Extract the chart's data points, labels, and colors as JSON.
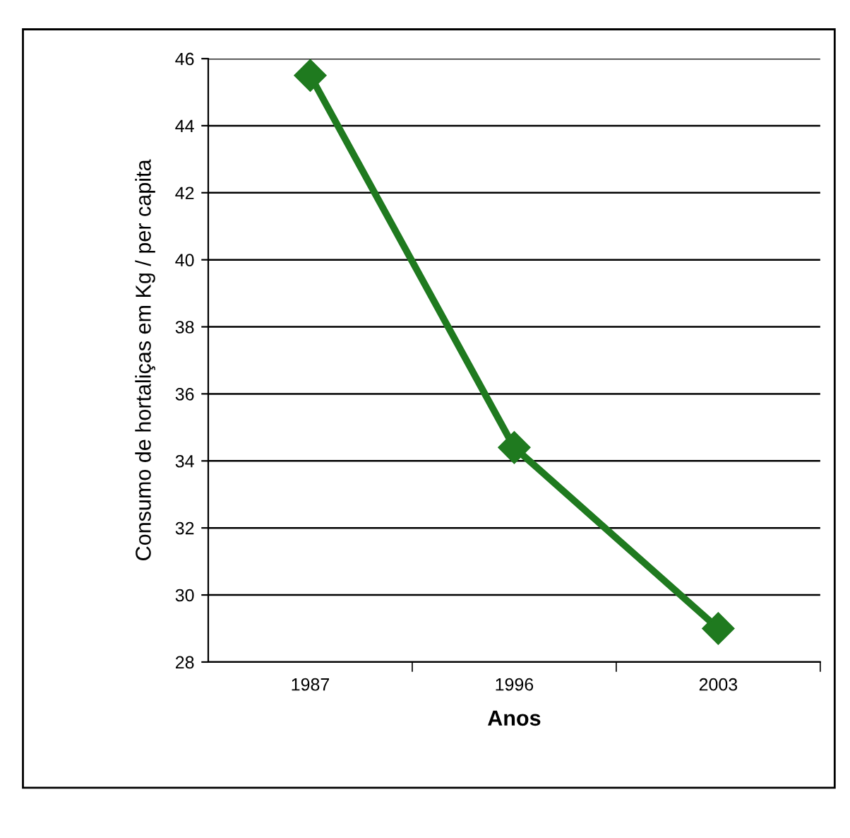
{
  "chart_data": {
    "type": "line",
    "xlabel": "Anos",
    "ylabel": "Consumo de hortaliças em Kg / per capita",
    "categories": [
      "1987",
      "1996",
      "2003"
    ],
    "series": [
      {
        "color": "#1f7a1f",
        "values": [
          45.5,
          34.4,
          29.0
        ]
      }
    ],
    "ylim": [
      28,
      46
    ],
    "yticks": [
      28,
      30,
      32,
      34,
      36,
      38,
      40,
      42,
      44,
      46
    ],
    "grid": "y",
    "marker": "diamond",
    "line_style": "solid"
  }
}
